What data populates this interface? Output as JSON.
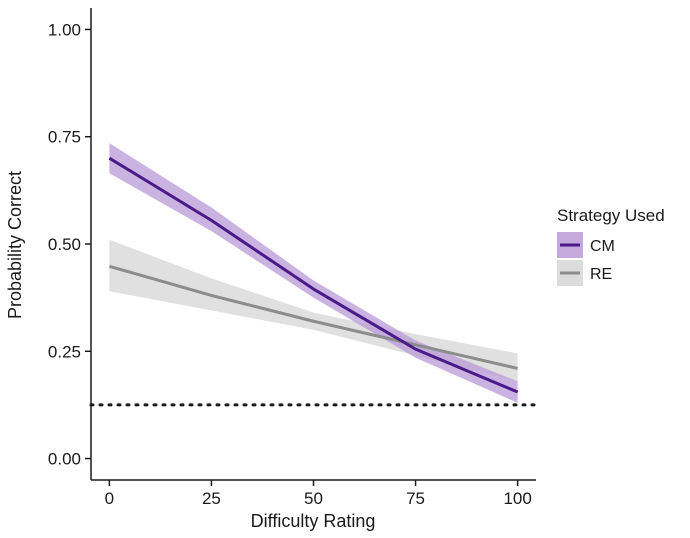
{
  "chart_data": {
    "type": "line",
    "xlabel": "Difficulty Rating",
    "ylabel": "Probability Correct",
    "xlim": [
      -4.5,
      104.5
    ],
    "ylim": [
      -0.05,
      1.05
    ],
    "x_ticks": [
      0,
      25,
      50,
      75,
      100
    ],
    "y_ticks": [
      0.0,
      0.25,
      0.5,
      0.75,
      1.0
    ],
    "y_tick_labels": [
      "0.00",
      "0.25",
      "0.50",
      "0.75",
      "1.00"
    ],
    "grid": false,
    "legend": {
      "title": "Strategy Used",
      "position": "right"
    },
    "reference_line": {
      "y": 0.125,
      "style": "dotted",
      "color": "#1a1a1a"
    },
    "series": [
      {
        "name": "CM",
        "color": "#4b1a8a",
        "band_color": "#b89ad6",
        "x": [
          0,
          25,
          50,
          75,
          100
        ],
        "y": [
          0.7,
          0.555,
          0.395,
          0.255,
          0.155
        ],
        "lower": [
          0.665,
          0.53,
          0.375,
          0.235,
          0.13
        ],
        "upper": [
          0.735,
          0.585,
          0.415,
          0.275,
          0.18
        ]
      },
      {
        "name": "RE",
        "color": "#8c8c8c",
        "band_color": "#d6d6d6",
        "x": [
          0,
          25,
          50,
          75,
          100
        ],
        "y": [
          0.448,
          0.38,
          0.32,
          0.265,
          0.21
        ],
        "lower": [
          0.39,
          0.345,
          0.3,
          0.24,
          0.18
        ],
        "upper": [
          0.51,
          0.42,
          0.34,
          0.29,
          0.245
        ]
      }
    ]
  }
}
